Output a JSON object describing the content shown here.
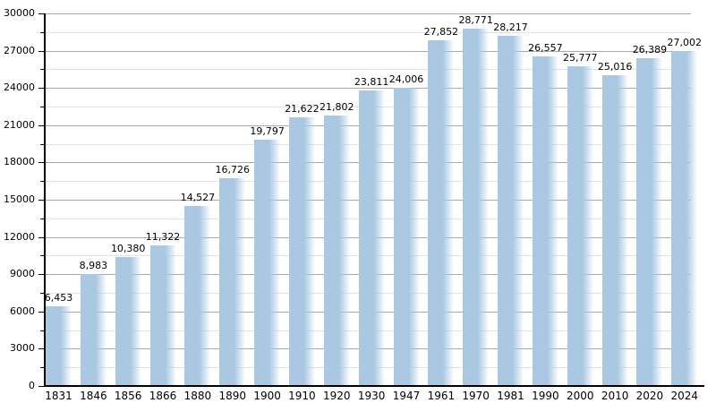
{
  "chart_data": {
    "type": "bar",
    "title": "",
    "xlabel": "",
    "ylabel": "",
    "categories": [
      "1831",
      "1846",
      "1856",
      "1866",
      "1880",
      "1890",
      "1900",
      "1910",
      "1920",
      "1930",
      "1947",
      "1961",
      "1970",
      "1981",
      "1990",
      "2000",
      "2010",
      "2020",
      "2024"
    ],
    "values": [
      6453,
      8983,
      10380,
      11322,
      14527,
      16726,
      19797,
      21622,
      21802,
      23811,
      24006,
      27852,
      28771,
      28217,
      26557,
      25777,
      25016,
      26389,
      27002
    ],
    "value_labels": [
      "6,453",
      "8,983",
      "10,380",
      "11,322",
      "14,527",
      "16,726",
      "19,797",
      "21,622",
      "21,802",
      "23,811",
      "24,006",
      "27,852",
      "28,771",
      "28,217",
      "26,557",
      "25,777",
      "25,016",
      "26,389",
      "27,002"
    ],
    "ylim": [
      0,
      30000
    ],
    "y_major_ticks": [
      0,
      3000,
      6000,
      9000,
      12000,
      15000,
      18000,
      21000,
      24000,
      27000,
      30000
    ],
    "y_tick_labels": [
      "0",
      "3000",
      "6000",
      "9000",
      "12000",
      "15000",
      "18000",
      "21000",
      "24000",
      "27000",
      "30000"
    ],
    "y_minor_step": 1500,
    "grid": "on",
    "legend": "none",
    "colors": {
      "bar": "#aac8e2",
      "major_grid": "#a9a9a9",
      "minor_grid": "#e3e3e3",
      "axis": "#000000",
      "text": "#000000",
      "background": "#ffffff"
    }
  }
}
